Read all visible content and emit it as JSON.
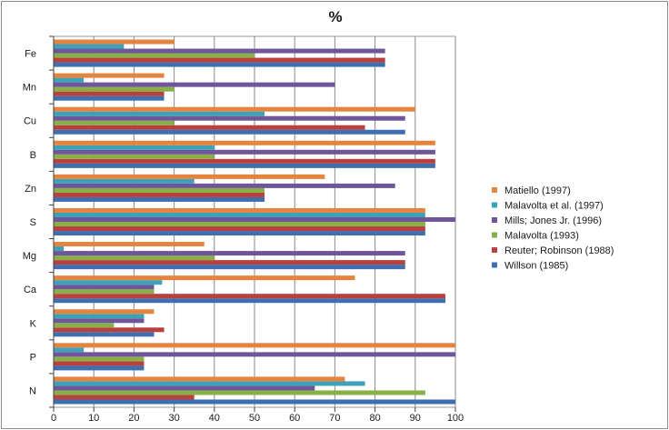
{
  "chart_data": {
    "type": "bar",
    "orientation": "horizontal",
    "title": "%",
    "xlabel": "",
    "ylabel": "",
    "xlim": [
      0,
      100
    ],
    "x_ticks": [
      0,
      10,
      20,
      30,
      40,
      50,
      60,
      70,
      80,
      90,
      100
    ],
    "grid": "vertical major gridlines",
    "legend_position": "right",
    "categories": [
      "N",
      "P",
      "K",
      "Ca",
      "Mg",
      "S",
      "Zn",
      "B",
      "Cu",
      "Mn",
      "Fe"
    ],
    "series": [
      {
        "name": "Willson (1985)",
        "color": "#3f6fb1",
        "values": [
          100,
          22.5,
          25,
          97.5,
          87.5,
          92.5,
          52.5,
          95,
          87.5,
          27.5,
          82.5
        ]
      },
      {
        "name": "Reuter; Robinson (1988)",
        "color": "#b8413e",
        "values": [
          35,
          22.5,
          27.5,
          97.5,
          87.5,
          92.5,
          52.5,
          95,
          77.5,
          27.5,
          82.5
        ]
      },
      {
        "name": "Malavolta (1993)",
        "color": "#8aae48",
        "values": [
          92.5,
          22.5,
          15,
          25,
          40,
          92.5,
          52.5,
          40,
          30,
          30,
          50
        ]
      },
      {
        "name": "Mills; Jones Jr. (1996)",
        "color": "#6f559a",
        "values": [
          65,
          100,
          22.5,
          25,
          87.5,
          100,
          85,
          95,
          87.5,
          70,
          82.5
        ]
      },
      {
        "name": "Malavolta et al. (1997)",
        "color": "#3ea1ba",
        "values": [
          77.5,
          7.5,
          22.5,
          27,
          2.5,
          92.5,
          35,
          40,
          52.5,
          7.5,
          17.5
        ]
      },
      {
        "name": "Matiello (1997)",
        "color": "#e4843f",
        "values": [
          72.5,
          100,
          25,
          75,
          37.5,
          92.5,
          67.5,
          95,
          90,
          27.5,
          30
        ]
      }
    ]
  }
}
